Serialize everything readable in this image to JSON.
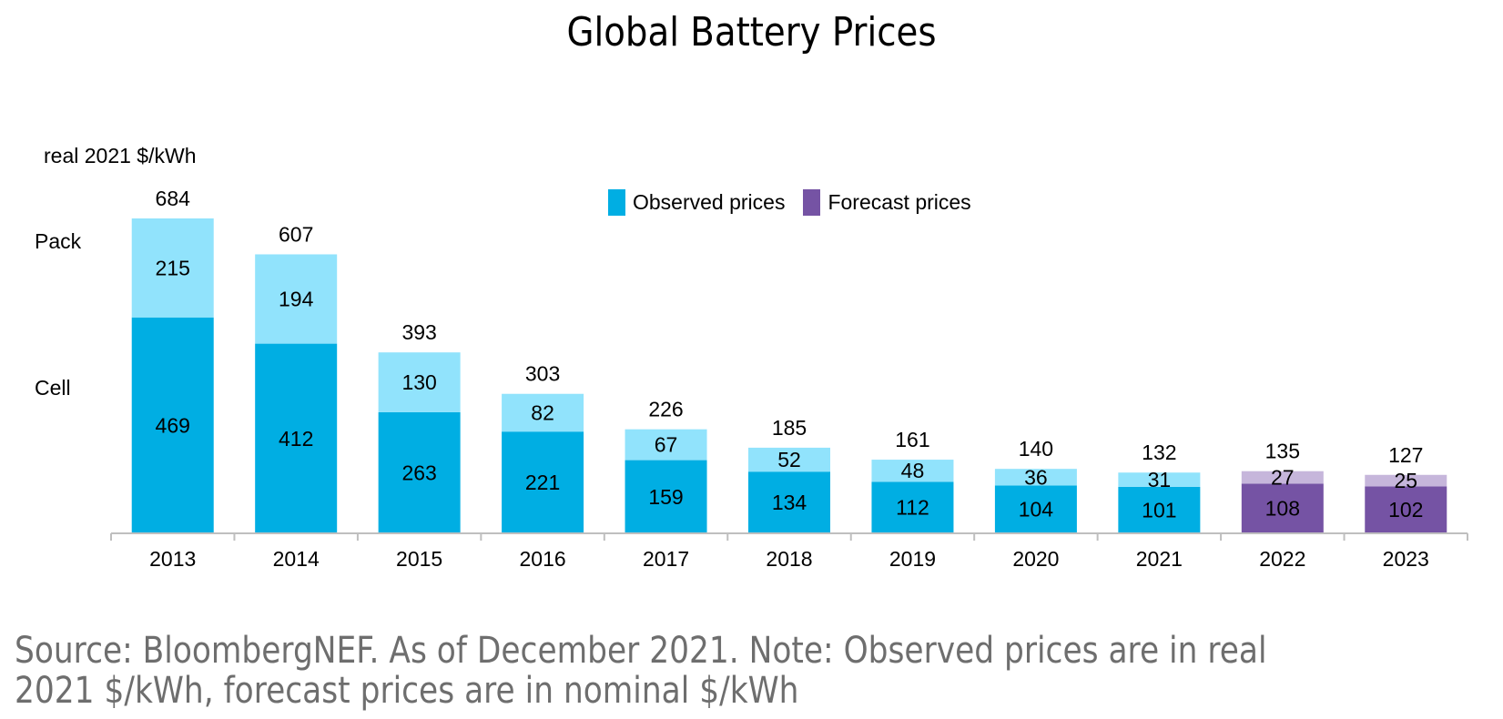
{
  "title": "Global Battery Prices",
  "unit_label": "real 2021 $/kWh",
  "row_labels": {
    "pack": "Pack",
    "cell": "Cell"
  },
  "legend": [
    {
      "label": "Observed prices",
      "color": "#00AEE3"
    },
    {
      "label": "Forecast prices",
      "color": "#7553A4"
    }
  ],
  "colors": {
    "observed_cell": "#00AEE3",
    "observed_pack": "#91E3FC",
    "forecast_cell": "#7553A4",
    "forecast_pack": "#C6B6DB",
    "axis": "#BFBFBF"
  },
  "source_lines": [
    "Source: BloombergNEF. As of December 2021. Note: Observed prices are in real",
    "2021 $/kWh, forecast prices are in nominal $/kWh"
  ],
  "chart_data": {
    "type": "bar",
    "stacked": true,
    "title": "Global Battery Prices",
    "xlabel": "",
    "ylabel": "real 2021 $/kWh",
    "ylim": [
      0,
      700
    ],
    "grid": false,
    "legend_position": "top-center",
    "categories": [
      "2013",
      "2014",
      "2015",
      "2016",
      "2017",
      "2018",
      "2019",
      "2020",
      "2021",
      "2022",
      "2023"
    ],
    "series": [
      {
        "name": "Cell",
        "values": [
          469,
          412,
          263,
          221,
          159,
          134,
          112,
          104,
          101,
          108,
          102
        ]
      },
      {
        "name": "Pack",
        "values": [
          215,
          194,
          130,
          82,
          67,
          52,
          48,
          36,
          31,
          27,
          25
        ]
      }
    ],
    "totals": [
      684,
      607,
      393,
      303,
      226,
      185,
      161,
      140,
      132,
      135,
      127
    ],
    "price_type": [
      "observed",
      "observed",
      "observed",
      "observed",
      "observed",
      "observed",
      "observed",
      "observed",
      "observed",
      "forecast",
      "forecast"
    ]
  }
}
